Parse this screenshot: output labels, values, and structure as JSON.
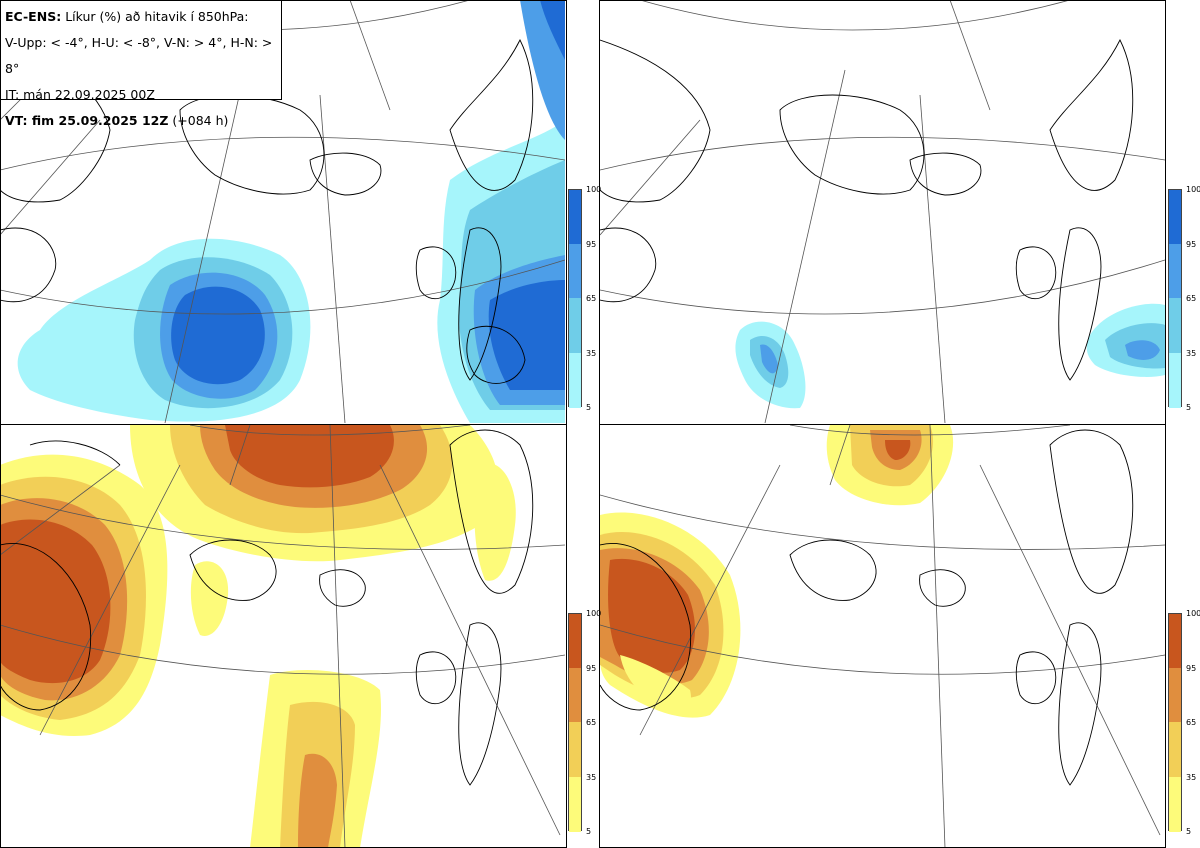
{
  "header": {
    "line1_bold": "EC-ENS:",
    "line1_rest": "Líkur (%) að hitavik í 850hPa:",
    "line2": "V-Upp: < -4°, H-U: < -8°, V-N: > 4°, H-N: > 8°",
    "line3": "IT: mán 22.09.2025 00Z",
    "line4_bold": "VT: fim 25.09.2025 12Z",
    "line4_rest": "(+084 h)"
  },
  "legend_cold": {
    "ticks": [
      "100",
      "95",
      "65",
      "35",
      "5"
    ],
    "colors": [
      "#1f6bd4",
      "#4d9ee8",
      "#6fcde8",
      "#a6f5fb"
    ]
  },
  "legend_warm": {
    "ticks": [
      "100",
      "95",
      "65",
      "35",
      "5"
    ],
    "colors": [
      "#c8561e",
      "#e08e3e",
      "#f2cf57",
      "#fdfb7a"
    ]
  }
}
